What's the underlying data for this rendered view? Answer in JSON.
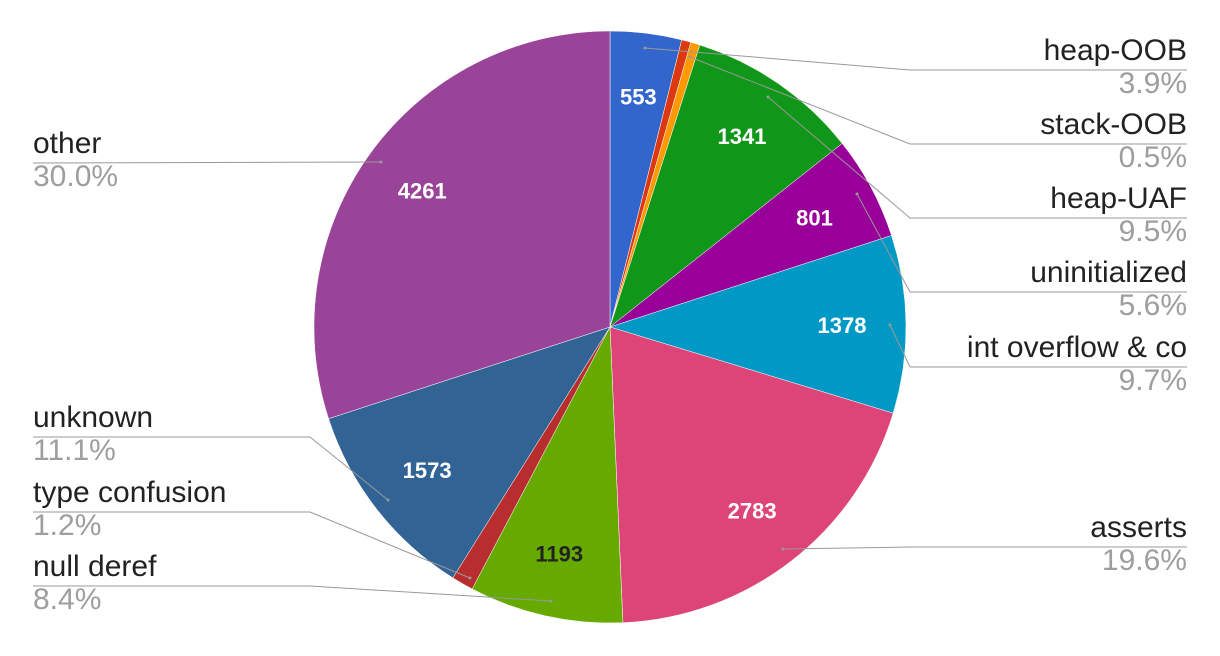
{
  "chart_data": {
    "type": "pie",
    "start_angle": "top, clockwise",
    "legend": "labeled leader lines",
    "slices": [
      {
        "name": "heap-OOB",
        "value": 553,
        "percent_label": "3.9%",
        "value_label": "553",
        "color": "#3366cc"
      },
      {
        "name": "",
        "value": 72,
        "percent_label": "",
        "value_label": "",
        "color": "#dc3912"
      },
      {
        "name": "stack-OOB",
        "value": 72,
        "percent_label": "0.5%",
        "value_label": "",
        "color": "#ff9900"
      },
      {
        "name": "heap-UAF",
        "value": 1341,
        "percent_label": "9.5%",
        "value_label": "1341",
        "color": "#109618"
      },
      {
        "name": "uninitialized",
        "value": 801,
        "percent_label": "5.6%",
        "value_label": "801",
        "color": "#990099"
      },
      {
        "name": "int overflow & co",
        "value": 1378,
        "percent_label": "9.7%",
        "value_label": "1378",
        "color": "#0099c6"
      },
      {
        "name": "asserts",
        "value": 2783,
        "percent_label": "19.6%",
        "value_label": "2783",
        "color": "#dd4477"
      },
      {
        "name": "null deref",
        "value": 1193,
        "percent_label": "8.4%",
        "value_label": "1193",
        "color": "#66aa00",
        "value_label_color": "#222222"
      },
      {
        "name": "type confusion",
        "value": 170,
        "percent_label": "1.2%",
        "value_label": "",
        "color": "#b82e2e"
      },
      {
        "name": "unknown",
        "value": 1573,
        "percent_label": "11.1%",
        "value_label": "1573",
        "color": "#316395"
      },
      {
        "name": "other",
        "value": 4261,
        "percent_label": "30.0%",
        "value_label": "4261",
        "color": "#994499"
      }
    ]
  }
}
